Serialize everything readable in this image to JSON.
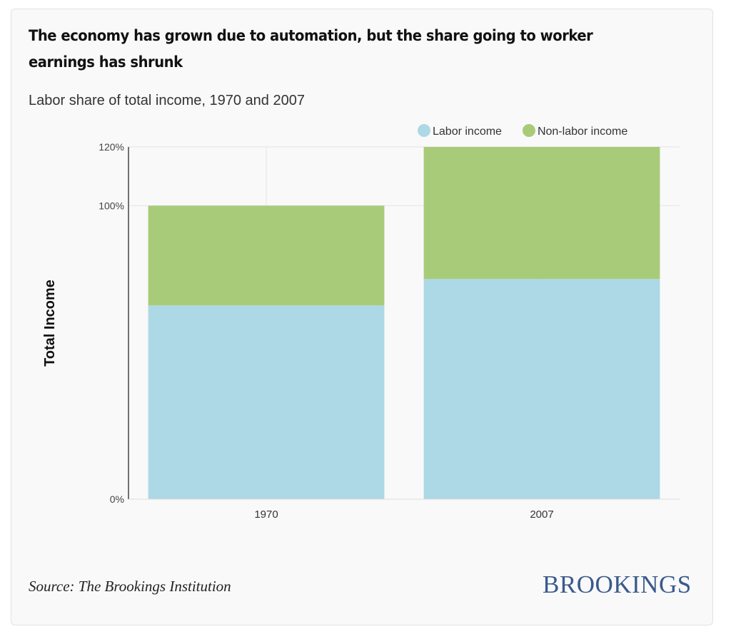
{
  "title": "The economy has grown due to automation, but the share going to worker earnings has shrunk",
  "subtitle": "Labor share of total income, 1970 and 2007",
  "source": "Source: The Brookings Institution",
  "logo": "BROOKINGS",
  "chart_data": {
    "type": "bar",
    "stacked": true,
    "categories": [
      "1970",
      "2007"
    ],
    "series": [
      {
        "name": "Labor income",
        "values": [
          66,
          75
        ],
        "color": "#add8e6"
      },
      {
        "name": "Non-labor income",
        "values": [
          34,
          45
        ],
        "color": "#a8cb7a"
      }
    ],
    "ylabel": "Total Income",
    "xlabel": "",
    "ylim": [
      0,
      120
    ],
    "yticks": [
      0,
      100,
      120
    ],
    "ytick_labels": [
      "0%",
      "100%",
      "120%"
    ],
    "grid": true,
    "legend": "top-right"
  }
}
